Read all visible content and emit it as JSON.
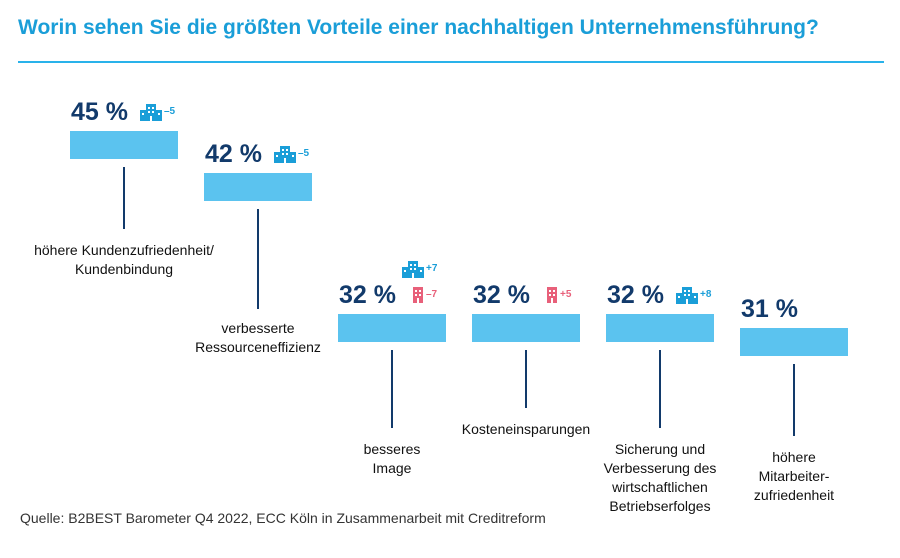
{
  "title": "Worin sehen Sie die größten Vorteile einer nachhaltigen Unternehmensführung?",
  "source": "Quelle: B2BEST Barometer Q4 2022, ECC Köln in Zusammenarbeit mit Creditreform",
  "colors": {
    "title": "#1a9ed8",
    "bar": "#5bc3ef",
    "value": "#123a6b",
    "icon_large_company": "#1a9ed8",
    "icon_small_company": "#e8607a"
  },
  "chart_data": {
    "type": "bar",
    "title": "Worin sehen Sie die größten Vorteile einer nachhaltigen Unternehmensführung?",
    "unit": "%",
    "categories": [
      "höhere Kundenzufriedenheit/\nKundenbindung",
      "verbesserte\nRessourceneffizienz",
      "besseres\nImage",
      "Kosteneinsparungen",
      "Sicherung und\nVerbesserung des\nwirtschaftlichen\nBetriebserfolges",
      "höhere\nMitarbeiter-\nzufriedenheit"
    ],
    "values": [
      45,
      42,
      32,
      32,
      32,
      31
    ],
    "value_labels": [
      "45 %",
      "42 %",
      "32 %",
      "32 %",
      "32 %",
      "31 %"
    ],
    "deltas": [
      [
        {
          "icon": "large-company-icon",
          "label": "–5"
        }
      ],
      [
        {
          "icon": "large-company-icon",
          "label": "–5"
        }
      ],
      [
        {
          "icon": "large-company-icon",
          "label": "+7"
        },
        {
          "icon": "small-company-icon",
          "label": "–7"
        }
      ],
      [
        {
          "icon": "small-company-icon",
          "label": "+5"
        }
      ],
      [
        {
          "icon": "large-company-icon",
          "label": "+8"
        }
      ],
      []
    ]
  }
}
